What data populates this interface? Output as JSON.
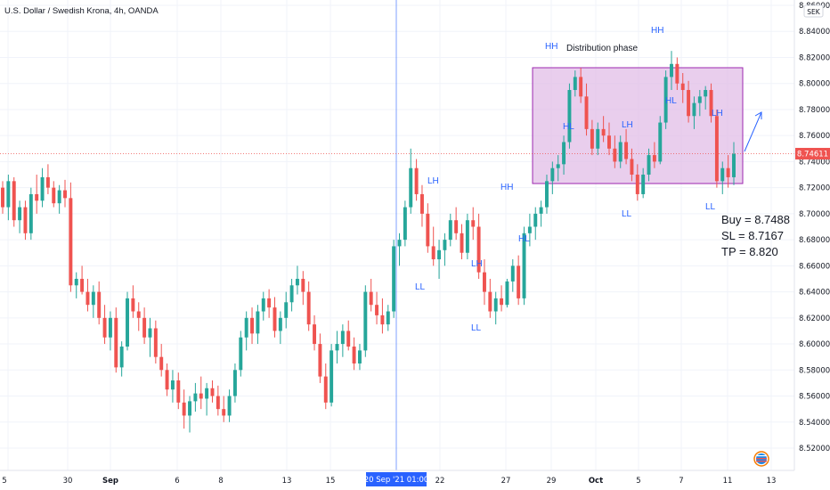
{
  "header": {
    "symbol_title": "U.S. Dollar / Swedish Krona, 4h, OANDA",
    "currency_badge": "SEK"
  },
  "price_axis": {
    "last_price_label": "8.74611",
    "ticks": [
      "8.86000",
      "8.84000",
      "8.82000",
      "8.80000",
      "8.78000",
      "8.76000",
      "8.74000",
      "8.72000",
      "8.70000",
      "8.68000",
      "8.66000",
      "8.64000",
      "8.62000",
      "8.60000",
      "8.58000",
      "8.56000",
      "8.54000",
      "8.52000"
    ]
  },
  "time_axis": {
    "ticks": [
      "5",
      "30",
      "Sep",
      "6",
      "8",
      "13",
      "15",
      "22",
      "27",
      "29",
      "Oct",
      "5",
      "7",
      "11",
      "13"
    ],
    "crosshair_label": "20 Sep '21   01:00"
  },
  "annotations": {
    "zone_label": "Distribution phase",
    "wave_labels": [
      "HH",
      "HH",
      "HL",
      "LH",
      "HL",
      "LH",
      "LL",
      "LL",
      "LL",
      "HH",
      "HL",
      "LH",
      "LH",
      "LL"
    ],
    "trade": {
      "buy": "Buy = 8.7488",
      "sl": "SL = 8.7167",
      "tp": "TP = 8.820"
    }
  },
  "colors": {
    "up": "#26a69a",
    "down": "#ef5350",
    "zone_fill": "#e1bee7",
    "zone_border": "#9c27b0",
    "wave_text": "#2962ff",
    "crosshair": "#2962ff",
    "last_price": "#ef5350"
  },
  "icons": {
    "watermark": "tradingview-logo-icon",
    "flag": "us-flag-icon"
  },
  "chart_data": {
    "type": "candlestick",
    "title": "U.S. Dollar / Swedish Krona, 4h, OANDA",
    "ylim": [
      8.51,
      8.865
    ],
    "y_ticks": [
      8.52,
      8.54,
      8.56,
      8.58,
      8.6,
      8.62,
      8.64,
      8.66,
      8.68,
      8.7,
      8.72,
      8.74,
      8.76,
      8.78,
      8.8,
      8.82,
      8.84,
      8.86
    ],
    "last_price": 8.74611,
    "grid": true,
    "candles": [
      [
        8.72,
        8.725,
        8.7,
        8.705
      ],
      [
        8.705,
        8.73,
        8.695,
        8.725
      ],
      [
        8.725,
        8.728,
        8.69,
        8.695
      ],
      [
        8.695,
        8.71,
        8.685,
        8.705
      ],
      [
        8.705,
        8.71,
        8.68,
        8.685
      ],
      [
        8.685,
        8.72,
        8.68,
        8.715
      ],
      [
        8.715,
        8.73,
        8.7,
        8.71
      ],
      [
        8.71,
        8.735,
        8.705,
        8.728
      ],
      [
        8.728,
        8.738,
        8.715,
        8.72
      ],
      [
        8.72,
        8.725,
        8.705,
        8.708
      ],
      [
        8.708,
        8.722,
        8.7,
        8.718
      ],
      [
        8.718,
        8.726,
        8.705,
        8.712
      ],
      [
        8.712,
        8.724,
        8.64,
        8.645
      ],
      [
        8.645,
        8.655,
        8.635,
        8.65
      ],
      [
        8.65,
        8.66,
        8.638,
        8.64
      ],
      [
        8.64,
        8.65,
        8.625,
        8.63
      ],
      [
        8.63,
        8.645,
        8.62,
        8.64
      ],
      [
        8.64,
        8.648,
        8.615,
        8.62
      ],
      [
        8.62,
        8.63,
        8.6,
        8.605
      ],
      [
        8.605,
        8.625,
        8.595,
        8.62
      ],
      [
        8.62,
        8.628,
        8.578,
        8.582
      ],
      [
        8.582,
        8.602,
        8.575,
        8.598
      ],
      [
        8.598,
        8.64,
        8.595,
        8.635
      ],
      [
        8.635,
        8.645,
        8.62,
        8.625
      ],
      [
        8.625,
        8.632,
        8.61,
        8.62
      ],
      [
        8.62,
        8.628,
        8.6,
        8.605
      ],
      [
        8.605,
        8.62,
        8.59,
        8.612
      ],
      [
        8.612,
        8.618,
        8.585,
        8.59
      ],
      [
        8.59,
        8.6,
        8.575,
        8.58
      ],
      [
        8.58,
        8.585,
        8.56,
        8.565
      ],
      [
        8.565,
        8.58,
        8.555,
        8.572
      ],
      [
        8.572,
        8.578,
        8.55,
        8.555
      ],
      [
        8.555,
        8.565,
        8.535,
        8.545
      ],
      [
        8.545,
        8.56,
        8.532,
        8.556
      ],
      [
        8.556,
        8.57,
        8.548,
        8.562
      ],
      [
        8.562,
        8.575,
        8.55,
        8.558
      ],
      [
        8.558,
        8.57,
        8.545,
        8.566
      ],
      [
        8.566,
        8.572,
        8.555,
        8.56
      ],
      [
        8.56,
        8.568,
        8.545,
        8.55
      ],
      [
        8.55,
        8.56,
        8.54,
        8.545
      ],
      [
        8.545,
        8.565,
        8.54,
        8.56
      ],
      [
        8.56,
        8.585,
        8.555,
        8.58
      ],
      [
        8.58,
        8.61,
        8.575,
        8.605
      ],
      [
        8.605,
        8.625,
        8.595,
        8.62
      ],
      [
        8.62,
        8.628,
        8.6,
        8.608
      ],
      [
        8.608,
        8.63,
        8.6,
        8.625
      ],
      [
        8.625,
        8.64,
        8.618,
        8.635
      ],
      [
        8.635,
        8.642,
        8.62,
        8.628
      ],
      [
        8.628,
        8.636,
        8.605,
        8.61
      ],
      [
        8.61,
        8.625,
        8.6,
        8.62
      ],
      [
        8.62,
        8.64,
        8.612,
        8.632
      ],
      [
        8.632,
        8.65,
        8.625,
        8.645
      ],
      [
        8.645,
        8.66,
        8.638,
        8.65
      ],
      [
        8.65,
        8.656,
        8.63,
        8.64
      ],
      [
        8.64,
        8.648,
        8.61,
        8.615
      ],
      [
        8.615,
        8.622,
        8.595,
        8.6
      ],
      [
        8.6,
        8.608,
        8.57,
        8.575
      ],
      [
        8.575,
        8.585,
        8.55,
        8.555
      ],
      [
        8.555,
        8.6,
        8.552,
        8.595
      ],
      [
        8.595,
        8.61,
        8.585,
        8.6
      ],
      [
        8.6,
        8.615,
        8.59,
        8.61
      ],
      [
        8.61,
        8.618,
        8.595,
        8.598
      ],
      [
        8.598,
        8.605,
        8.58,
        8.585
      ],
      [
        8.585,
        8.6,
        8.58,
        8.595
      ],
      [
        8.595,
        8.645,
        8.59,
        8.64
      ],
      [
        8.64,
        8.65,
        8.625,
        8.63
      ],
      [
        8.63,
        8.64,
        8.615,
        8.622
      ],
      [
        8.622,
        8.635,
        8.608,
        8.615
      ],
      [
        8.615,
        8.63,
        8.61,
        8.625
      ],
      [
        8.625,
        8.68,
        8.62,
        8.675
      ],
      [
        8.675,
        8.685,
        8.66,
        8.68
      ],
      [
        8.68,
        8.71,
        8.675,
        8.705
      ],
      [
        8.705,
        8.75,
        8.7,
        8.735
      ],
      [
        8.735,
        8.742,
        8.71,
        8.715
      ],
      [
        8.715,
        8.722,
        8.69,
        8.7
      ],
      [
        8.7,
        8.708,
        8.67,
        8.675
      ],
      [
        8.675,
        8.69,
        8.66,
        8.665
      ],
      [
        8.665,
        8.68,
        8.65,
        8.672
      ],
      [
        8.672,
        8.685,
        8.66,
        8.68
      ],
      [
        8.68,
        8.7,
        8.675,
        8.695
      ],
      [
        8.695,
        8.705,
        8.68,
        8.685
      ],
      [
        8.685,
        8.692,
        8.665,
        8.67
      ],
      [
        8.67,
        8.7,
        8.665,
        8.695
      ],
      [
        8.695,
        8.705,
        8.68,
        8.69
      ],
      [
        8.69,
        8.7,
        8.65,
        8.655
      ],
      [
        8.655,
        8.665,
        8.63,
        8.64
      ],
      [
        8.64,
        8.65,
        8.62,
        8.625
      ],
      [
        8.625,
        8.64,
        8.615,
        8.635
      ],
      [
        8.635,
        8.645,
        8.625,
        8.63
      ],
      [
        8.63,
        8.65,
        8.628,
        8.648
      ],
      [
        8.648,
        8.665,
        8.64,
        8.66
      ],
      [
        8.66,
        8.668,
        8.63,
        8.635
      ],
      [
        8.635,
        8.69,
        8.63,
        8.685
      ],
      [
        8.685,
        8.7,
        8.675,
        8.69
      ],
      [
        8.69,
        8.705,
        8.68,
        8.7
      ],
      [
        8.7,
        8.71,
        8.69,
        8.705
      ],
      [
        8.705,
        8.73,
        8.7,
        8.725
      ],
      [
        8.725,
        8.74,
        8.715,
        8.735
      ],
      [
        8.735,
        8.745,
        8.725,
        8.738
      ],
      [
        8.738,
        8.76,
        8.73,
        8.755
      ],
      [
        8.755,
        8.8,
        8.75,
        8.795
      ],
      [
        8.795,
        8.81,
        8.79,
        8.805
      ],
      [
        8.805,
        8.812,
        8.785,
        8.79
      ],
      [
        8.79,
        8.8,
        8.76,
        8.765
      ],
      [
        8.765,
        8.772,
        8.745,
        8.75
      ],
      [
        8.75,
        8.77,
        8.745,
        8.765
      ],
      [
        8.765,
        8.775,
        8.755,
        8.76
      ],
      [
        8.76,
        8.77,
        8.745,
        8.75
      ],
      [
        8.75,
        8.76,
        8.735,
        8.74
      ],
      [
        8.74,
        8.76,
        8.735,
        8.755
      ],
      [
        8.755,
        8.765,
        8.738,
        8.742
      ],
      [
        8.742,
        8.75,
        8.725,
        8.73
      ],
      [
        8.73,
        8.738,
        8.71,
        8.715
      ],
      [
        8.715,
        8.735,
        8.712,
        8.73
      ],
      [
        8.73,
        8.75,
        8.725,
        8.745
      ],
      [
        8.745,
        8.755,
        8.735,
        8.74
      ],
      [
        8.74,
        8.775,
        8.738,
        8.77
      ],
      [
        8.77,
        8.81,
        8.765,
        8.805
      ],
      [
        8.805,
        8.825,
        8.795,
        8.815
      ],
      [
        8.815,
        8.82,
        8.795,
        8.8
      ],
      [
        8.8,
        8.808,
        8.785,
        8.795
      ],
      [
        8.795,
        8.802,
        8.77,
        8.775
      ],
      [
        8.775,
        8.79,
        8.765,
        8.785
      ],
      [
        8.785,
        8.795,
        8.775,
        8.79
      ],
      [
        8.79,
        8.798,
        8.78,
        8.795
      ],
      [
        8.795,
        8.8,
        8.77,
        8.775
      ],
      [
        8.775,
        8.78,
        8.72,
        8.725
      ],
      [
        8.725,
        8.74,
        8.715,
        8.735
      ],
      [
        8.735,
        8.745,
        8.72,
        8.728
      ],
      [
        8.728,
        8.755,
        8.722,
        8.746
      ]
    ]
  }
}
